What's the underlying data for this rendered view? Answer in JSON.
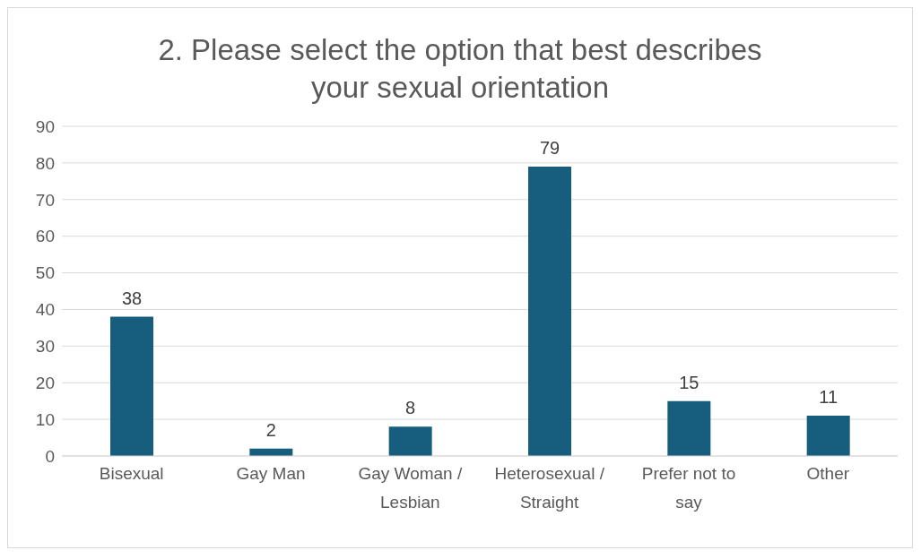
{
  "chart_data": {
    "type": "bar",
    "title": "2. Please select the option that best describes your sexual orientation",
    "categories": [
      "Bisexual",
      "Gay Man",
      "Gay Woman / Lesbian",
      "Heterosexual / Straight",
      "Prefer not to say",
      "Other"
    ],
    "values": [
      38,
      2,
      8,
      79,
      15,
      11
    ],
    "color": "#175e7e",
    "ylim": [
      0,
      90
    ],
    "yticks": [
      0,
      10,
      20,
      30,
      40,
      50,
      60,
      70,
      80,
      90
    ],
    "grid": "y",
    "data_labels": true
  }
}
